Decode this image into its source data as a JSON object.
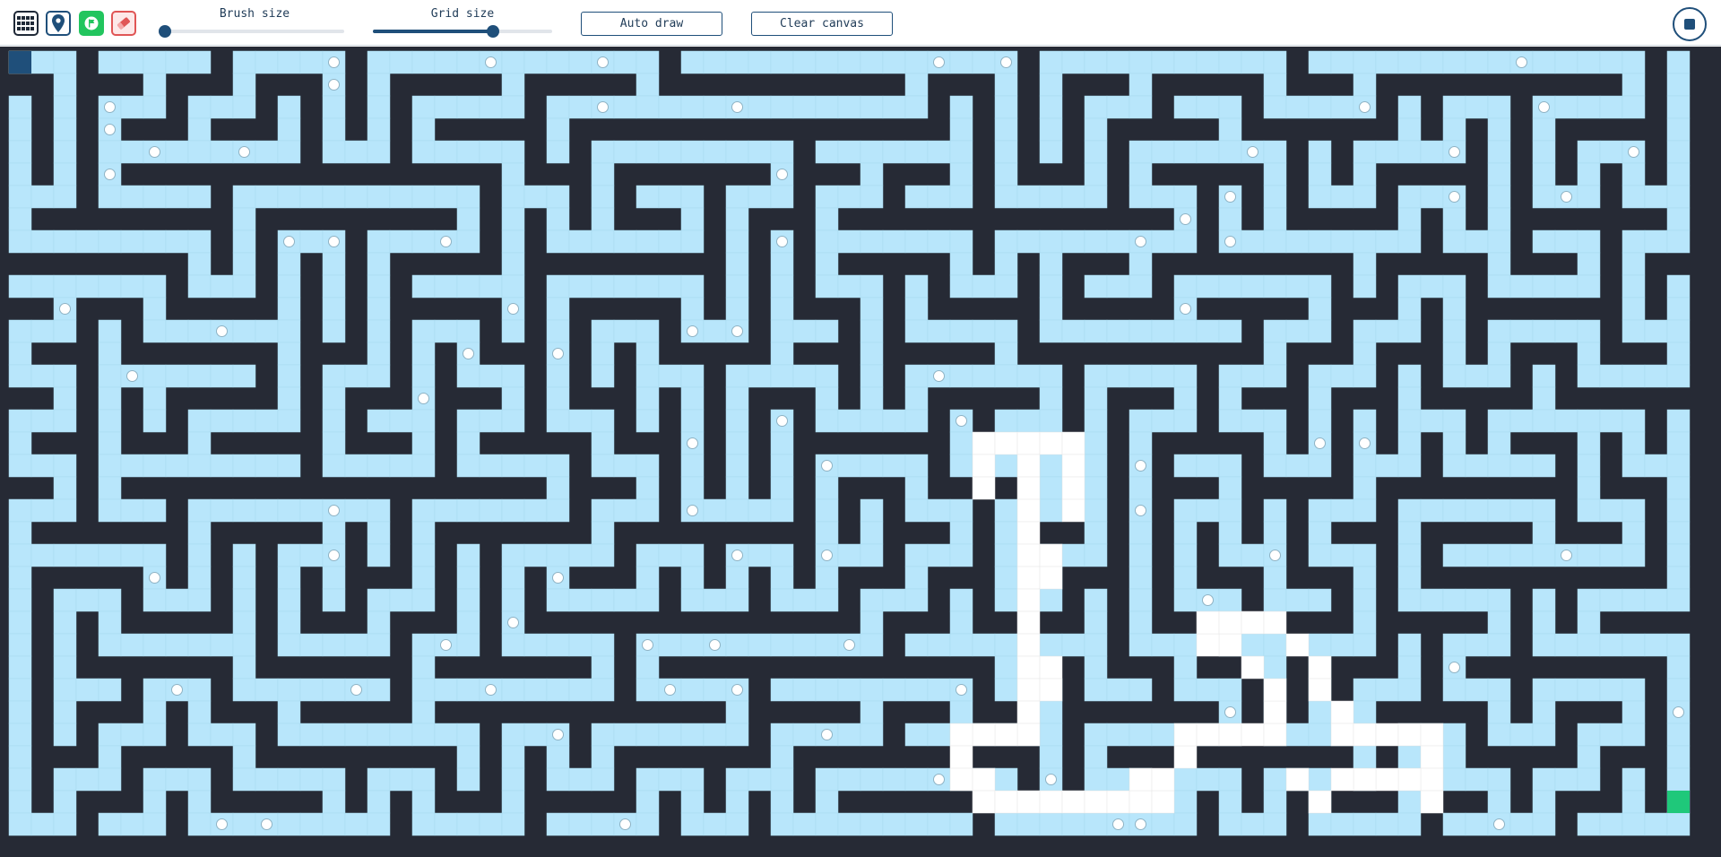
{
  "toolbar": {
    "tool_icons": [
      {
        "icon": "grid-icon",
        "color": "#1f2937"
      },
      {
        "icon": "map-pin-icon",
        "color": "#1f4f7a"
      },
      {
        "icon": "flag-icon",
        "color": "#22c55e"
      },
      {
        "icon": "eraser-icon",
        "color": "#e05555"
      }
    ],
    "brush_size": {
      "label": "Brush size",
      "value_fraction": 0.0
    },
    "grid_size": {
      "label": "Grid size",
      "value_fraction": 0.67
    },
    "auto_draw_label": "Auto draw",
    "clear_canvas_label": "Clear canvas",
    "stop_icon": "stop-icon"
  },
  "maze": {
    "colors": {
      "wall": "#262a35",
      "passage": "#b8e6fb",
      "path": "#ffffff",
      "start": "#1f4f7a",
      "end": "#1fc87a",
      "visited_marker": "#ffffff"
    },
    "start_cell": {
      "col": 0,
      "row": 0
    },
    "end_cell": {
      "col": 74,
      "row": 33
    }
  }
}
